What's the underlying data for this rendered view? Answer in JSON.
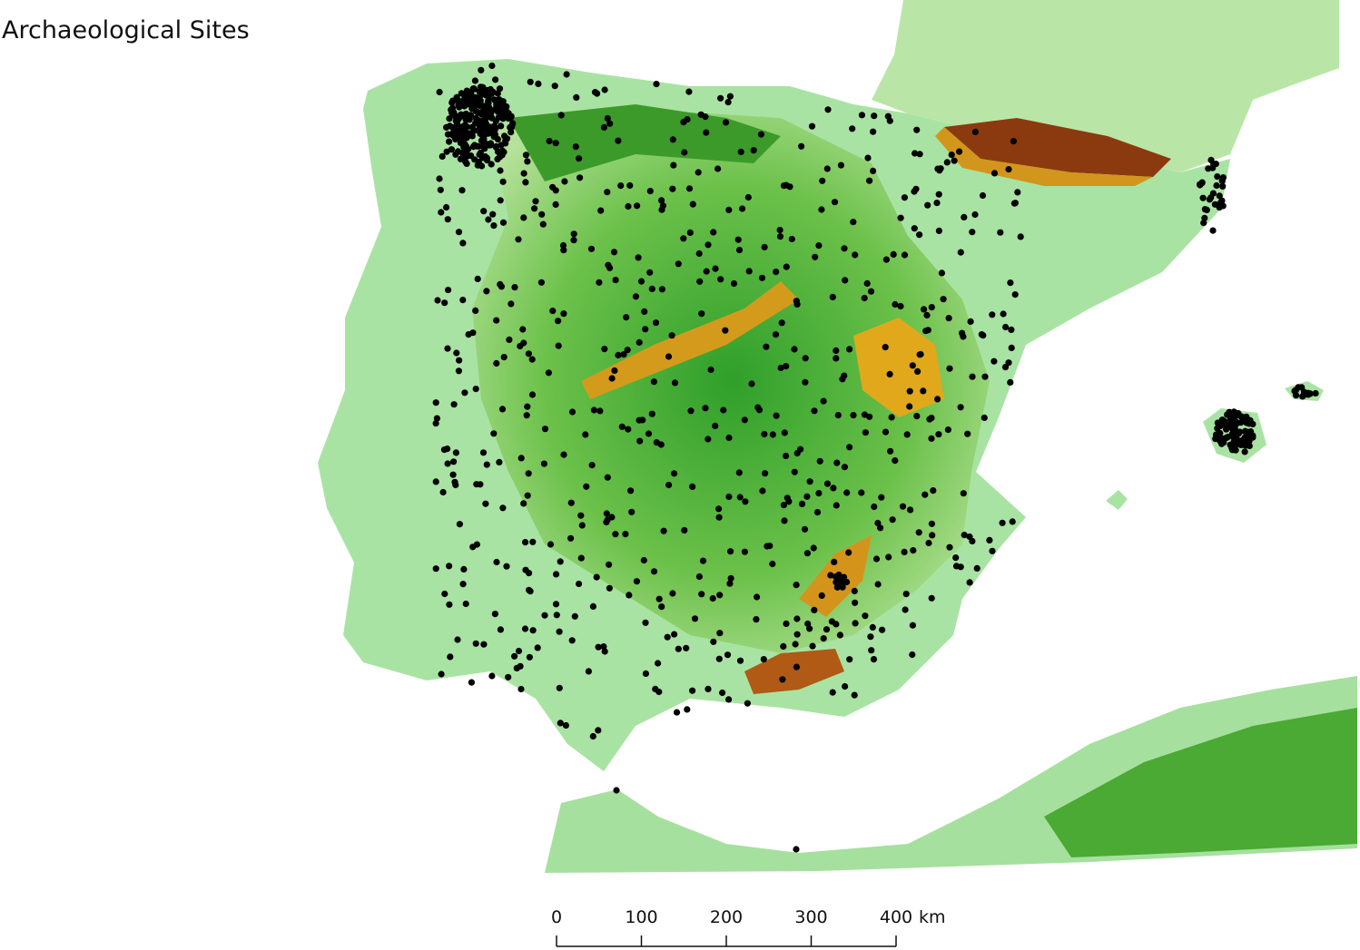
{
  "title": "Archaeological Sites",
  "scale_bar": {
    "ticks": [
      0,
      100,
      200,
      300,
      400
    ],
    "unit": "km"
  }
}
